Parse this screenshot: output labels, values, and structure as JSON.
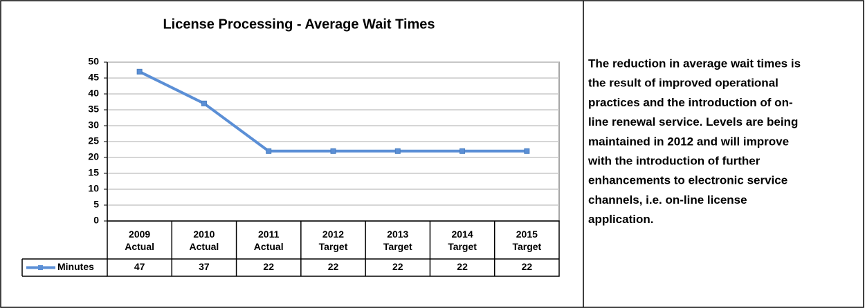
{
  "chart_data": {
    "type": "line",
    "title": "License Processing - Average Wait Times",
    "categories": [
      "2009\nActual",
      "2010\nActual",
      "2011\nActual",
      "2012\nTarget",
      "2013\nTarget",
      "2014\nTarget",
      "2015\nTarget"
    ],
    "series": [
      {
        "name": "Minutes",
        "color": "#5b8fd6",
        "values": [
          47,
          37,
          22,
          22,
          22,
          22,
          22
        ]
      }
    ],
    "ylim": [
      0,
      50
    ],
    "yticks": [
      0,
      5,
      10,
      15,
      20,
      25,
      30,
      35,
      40,
      45,
      50
    ],
    "grid": true
  },
  "description": {
    "lines": [
      "The reduction in average wait times is",
      "the result of improved operational",
      "practices and the introduction of on-",
      "line renewal service. Levels are being",
      "maintained in 2012 and will improve",
      "with the introduction of further",
      "enhancements to electronic service",
      "channels, i.e. on-line license",
      "application."
    ]
  }
}
